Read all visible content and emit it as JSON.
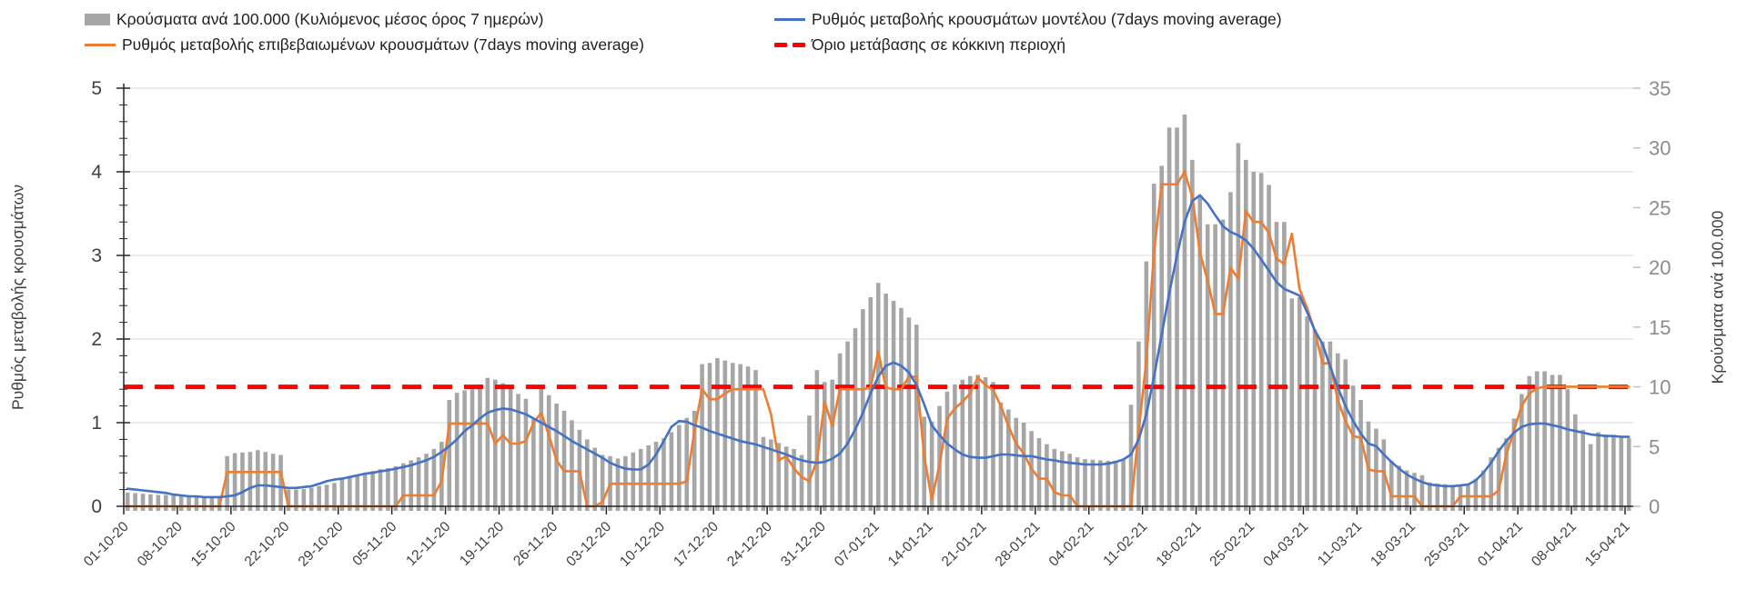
{
  "legend": {
    "row1_col1_ref": "bars",
    "row1_col2_ref": "model_line",
    "row2_col1_ref": "confirmed_line",
    "row2_col2_ref": "threshold"
  },
  "axes": {
    "y_left": {
      "title": "Ρυθμός μεταβολής κρουσμάτων",
      "min": 0,
      "max": 5,
      "ticks": [
        0,
        1,
        2,
        3,
        4,
        5
      ],
      "minor_step": 0.2,
      "label_color": "#404040"
    },
    "y_right": {
      "title": "Κρούσματα ανά 100.000",
      "min": 0,
      "max": 35,
      "ticks": [
        0,
        5,
        10,
        15,
        20,
        25,
        30,
        35
      ],
      "label_color": "#8c8c8c"
    },
    "x": {
      "tick_labels": [
        "01-10-20",
        "08-10-20",
        "15-10-20",
        "22-10-20",
        "29-10-20",
        "05-11-20",
        "12-11-20",
        "19-11-20",
        "26-11-20",
        "03-12-20",
        "10-12-20",
        "17-12-20",
        "24-12-20",
        "31-12-20",
        "07-01-21",
        "14-01-21",
        "21-01-21",
        "28-01-21",
        "04-02-21",
        "11-02-21",
        "18-02-21",
        "25-02-21",
        "04-03-21",
        "11-03-21",
        "18-03-21",
        "25-03-21",
        "01-04-21",
        "08-04-21",
        "15-04-21"
      ],
      "interval_days": 7,
      "label_color": "#404040"
    }
  },
  "colors": {
    "bars": "#a6a6a6",
    "confirmed": "#ED7D31",
    "model": "#4472C4",
    "threshold": "#FF0000",
    "grid": "#d9d9d9",
    "axis": "#262626",
    "right_tick": "#bfbfbf"
  },
  "chart_data": {
    "type": "combo",
    "x_start": "01-10-20",
    "x_end": "15-04-21",
    "x_interval": "daily",
    "x_count": 197,
    "grid": true,
    "legend_position": "top",
    "y_left_range": [
      0,
      5
    ],
    "y_right_range": [
      0,
      35
    ],
    "series": [
      {
        "name": "Κρούσματα ανά 100.000 (Κυλιόμενος μέσος όρος 7 ημερών)",
        "type": "bar",
        "axis": "right",
        "color": "#a6a6a6",
        "values": [
          1.15,
          1.1,
          1.05,
          1.0,
          0.95,
          0.95,
          0.9,
          0.85,
          0.85,
          0.8,
          0.8,
          0.8,
          0.85,
          4.2,
          4.45,
          4.5,
          4.55,
          4.7,
          4.55,
          4.4,
          4.3,
          1.4,
          1.4,
          1.45,
          1.55,
          1.7,
          1.8,
          1.95,
          2.35,
          2.5,
          2.6,
          2.75,
          2.95,
          3.1,
          3.2,
          3.35,
          3.6,
          3.85,
          4.1,
          4.4,
          4.8,
          5.4,
          8.9,
          9.5,
          9.7,
          9.8,
          10.2,
          10.75,
          10.6,
          10.3,
          9.9,
          9.4,
          9.0,
          7.3,
          9.9,
          9.3,
          8.6,
          8.0,
          7.2,
          6.4,
          5.6,
          4.9,
          4.3,
          4.2,
          4.0,
          4.2,
          4.5,
          4.8,
          5.1,
          5.4,
          5.7,
          6.2,
          6.8,
          7.4,
          8.0,
          11.9,
          12.0,
          12.4,
          12.2,
          12.0,
          11.9,
          11.7,
          11.4,
          5.8,
          5.6,
          5.3,
          5.0,
          4.8,
          4.3,
          7.6,
          11.4,
          10.4,
          10.6,
          12.8,
          13.8,
          14.9,
          16.5,
          17.5,
          18.7,
          17.8,
          17.2,
          16.6,
          15.8,
          15.2,
          7.5,
          7.1,
          8.4,
          9.6,
          10.2,
          10.6,
          10.9,
          11.0,
          10.8,
          10.4,
          8.7,
          8.1,
          7.4,
          7.0,
          6.3,
          5.7,
          5.2,
          4.8,
          4.6,
          4.4,
          4.1,
          3.95,
          3.9,
          3.85,
          3.8,
          3.8,
          3.9,
          8.5,
          13.8,
          20.5,
          27.0,
          28.5,
          31.7,
          31.7,
          32.8,
          29.0,
          25.9,
          23.6,
          23.6,
          24.0,
          26.3,
          30.4,
          29.0,
          28.0,
          27.9,
          26.9,
          23.8,
          23.8,
          17.4,
          17.5,
          15.9,
          14.8,
          13.8,
          13.8,
          12.8,
          12.3,
          10.1,
          8.9,
          7.1,
          6.5,
          5.6,
          3.8,
          3.4,
          3.0,
          2.8,
          2.6,
          2.0,
          1.9,
          1.85,
          1.8,
          1.8,
          1.9,
          2.3,
          3.0,
          4.1,
          4.9,
          5.7,
          7.35,
          9.4,
          10.9,
          11.3,
          11.3,
          11.0,
          11.0,
          9.8,
          7.7,
          6.4,
          5.2,
          6.2,
          6.0,
          5.9,
          5.8,
          5.7
        ]
      },
      {
        "name": "Ρυθμός μεταβολής επιβεβαιωμένων κρουσμάτων (7days moving average)",
        "type": "line",
        "axis": "left",
        "color": "#ED7D31",
        "values": [
          0,
          0,
          0,
          0,
          0,
          0,
          0,
          0,
          0,
          0,
          0,
          0,
          0,
          0.41,
          0.41,
          0.41,
          0.41,
          0.41,
          0.41,
          0.41,
          0.41,
          0,
          0,
          0,
          0,
          0,
          0,
          0,
          0,
          0,
          0,
          0,
          0,
          0,
          0,
          0,
          0.13,
          0.13,
          0.13,
          0.13,
          0.13,
          0.3,
          0.99,
          0.99,
          0.99,
          0.99,
          0.99,
          0.99,
          0.75,
          0.85,
          0.75,
          0.75,
          0.78,
          1.0,
          1.12,
          0.85,
          0.55,
          0.42,
          0.42,
          0.42,
          0,
          0,
          0.05,
          0.27,
          0.27,
          0.27,
          0.27,
          0.27,
          0.27,
          0.27,
          0.27,
          0.27,
          0.27,
          0.3,
          0.9,
          1.4,
          1.28,
          1.28,
          1.35,
          1.4,
          1.4,
          1.4,
          1.4,
          1.4,
          1.1,
          0.55,
          0.6,
          0.45,
          0.35,
          0.3,
          0.55,
          1.25,
          0.96,
          1.4,
          1.4,
          1.4,
          1.4,
          1.42,
          1.85,
          1.42,
          1.4,
          1.4,
          1.55,
          1.55,
          0.6,
          0.08,
          0.5,
          1.05,
          1.17,
          1.25,
          1.35,
          1.54,
          1.45,
          1.39,
          1.2,
          0.96,
          0.75,
          0.63,
          0.45,
          0.33,
          0.33,
          0.17,
          0.13,
          0.13,
          0,
          0,
          0,
          0,
          0,
          0,
          0,
          0,
          0.9,
          1.75,
          3.04,
          3.85,
          3.85,
          3.85,
          4.0,
          3.7,
          3.03,
          2.7,
          2.3,
          2.3,
          2.85,
          2.72,
          3.53,
          3.4,
          3.4,
          3.27,
          2.96,
          2.9,
          3.26,
          2.6,
          2.37,
          2.09,
          1.71,
          1.71,
          1.27,
          1.02,
          0.84,
          0.82,
          0.44,
          0.42,
          0.42,
          0.12,
          0.12,
          0.12,
          0.12,
          0,
          0,
          0,
          0,
          0,
          0.12,
          0.12,
          0.12,
          0.12,
          0.12,
          0.19,
          0.62,
          0.91,
          1.2,
          1.35,
          1.41,
          1.43,
          1.43,
          1.43,
          1.43,
          1.43,
          1.43,
          1.43,
          1.43,
          1.43,
          1.43,
          1.43,
          1.43
        ]
      },
      {
        "name": "Ρυθμός μεταβολής κρουσμάτων μοντέλου (7days moving average)",
        "type": "line",
        "axis": "left",
        "color": "#4472C4",
        "values": [
          0.21,
          0.2,
          0.19,
          0.18,
          0.17,
          0.16,
          0.14,
          0.13,
          0.12,
          0.12,
          0.11,
          0.11,
          0.11,
          0.12,
          0.13,
          0.17,
          0.22,
          0.25,
          0.25,
          0.24,
          0.23,
          0.22,
          0.22,
          0.23,
          0.24,
          0.27,
          0.3,
          0.32,
          0.33,
          0.35,
          0.37,
          0.39,
          0.4,
          0.42,
          0.43,
          0.45,
          0.47,
          0.49,
          0.52,
          0.55,
          0.59,
          0.65,
          0.72,
          0.8,
          0.9,
          0.97,
          1.05,
          1.12,
          1.15,
          1.17,
          1.16,
          1.13,
          1.1,
          1.05,
          1.0,
          0.95,
          0.9,
          0.84,
          0.78,
          0.73,
          0.68,
          0.63,
          0.58,
          0.52,
          0.48,
          0.45,
          0.44,
          0.44,
          0.5,
          0.62,
          0.78,
          0.95,
          1.02,
          1.01,
          0.97,
          0.94,
          0.9,
          0.87,
          0.84,
          0.81,
          0.78,
          0.76,
          0.74,
          0.71,
          0.68,
          0.65,
          0.62,
          0.58,
          0.55,
          0.53,
          0.52,
          0.53,
          0.57,
          0.63,
          0.75,
          0.92,
          1.12,
          1.35,
          1.55,
          1.68,
          1.72,
          1.68,
          1.6,
          1.45,
          1.22,
          0.97,
          0.85,
          0.75,
          0.68,
          0.62,
          0.59,
          0.58,
          0.58,
          0.6,
          0.62,
          0.62,
          0.61,
          0.6,
          0.6,
          0.58,
          0.56,
          0.55,
          0.53,
          0.52,
          0.51,
          0.5,
          0.5,
          0.5,
          0.51,
          0.53,
          0.56,
          0.62,
          0.8,
          1.1,
          1.55,
          2.05,
          2.55,
          3.0,
          3.4,
          3.65,
          3.72,
          3.62,
          3.48,
          3.35,
          3.28,
          3.24,
          3.18,
          3.08,
          2.95,
          2.82,
          2.68,
          2.6,
          2.56,
          2.52,
          2.32,
          2.1,
          1.94,
          1.67,
          1.42,
          1.2,
          1.02,
          0.87,
          0.75,
          0.72,
          0.62,
          0.53,
          0.45,
          0.38,
          0.33,
          0.29,
          0.26,
          0.25,
          0.24,
          0.24,
          0.25,
          0.26,
          0.31,
          0.4,
          0.52,
          0.66,
          0.78,
          0.88,
          0.95,
          0.98,
          0.99,
          0.99,
          0.97,
          0.95,
          0.92,
          0.9,
          0.88,
          0.86,
          0.85,
          0.84,
          0.84,
          0.83,
          0.83
        ]
      },
      {
        "name": "Όριο μετάβασης σε κόκκινη περιοχή",
        "type": "threshold",
        "axis": "right",
        "color": "#FF0000",
        "value": 10
      }
    ]
  }
}
